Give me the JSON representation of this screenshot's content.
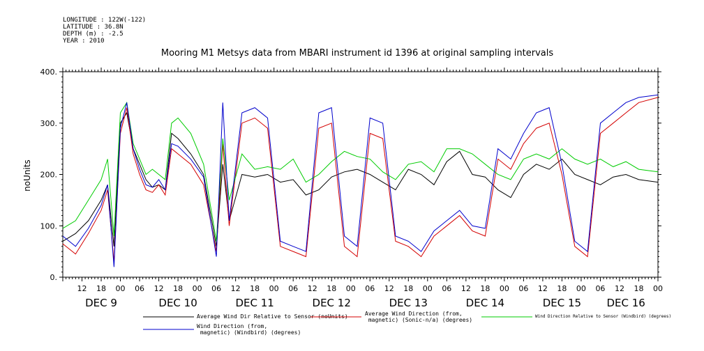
{
  "meta": {
    "longitude": "LONGITUDE : 122W(-122)",
    "latitude": "LATITUDE : 36.8N",
    "depth": "DEPTH (m) : -2.5",
    "year": "YEAR : 2010"
  },
  "chart_data": {
    "type": "line",
    "title": "Mooring M1 Metsys data from MBARI instrument id 1396 at original sampling intervals",
    "ylabel": "noUnits",
    "xlabel": "",
    "ylim": [
      0,
      400
    ],
    "xlim_hours": [
      0,
      186
    ],
    "y_ticks": [
      "0.",
      "100.",
      "200.",
      "300.",
      "400."
    ],
    "y_tick_values": [
      0,
      100,
      200,
      300,
      400
    ],
    "hour_tick_labels": [
      {
        "h": 6,
        "label": "12"
      },
      {
        "h": 12,
        "label": "18"
      },
      {
        "h": 18,
        "label": "00"
      },
      {
        "h": 24,
        "label": "06"
      },
      {
        "h": 30,
        "label": "12"
      },
      {
        "h": 36,
        "label": "18"
      },
      {
        "h": 42,
        "label": "00"
      },
      {
        "h": 48,
        "label": "06"
      },
      {
        "h": 54,
        "label": "12"
      },
      {
        "h": 60,
        "label": "18"
      },
      {
        "h": 66,
        "label": "00"
      },
      {
        "h": 72,
        "label": "06"
      },
      {
        "h": 78,
        "label": "12"
      },
      {
        "h": 84,
        "label": "18"
      },
      {
        "h": 90,
        "label": "00"
      },
      {
        "h": 96,
        "label": "06"
      },
      {
        "h": 102,
        "label": "12"
      },
      {
        "h": 108,
        "label": "18"
      },
      {
        "h": 114,
        "label": "00"
      },
      {
        "h": 120,
        "label": "06"
      },
      {
        "h": 126,
        "label": "12"
      },
      {
        "h": 132,
        "label": "18"
      },
      {
        "h": 138,
        "label": "00"
      },
      {
        "h": 144,
        "label": "06"
      },
      {
        "h": 150,
        "label": "12"
      },
      {
        "h": 156,
        "label": "18"
      },
      {
        "h": 162,
        "label": "00"
      },
      {
        "h": 168,
        "label": "06"
      },
      {
        "h": 174,
        "label": "12"
      },
      {
        "h": 180,
        "label": "18"
      },
      {
        "h": 186,
        "label": "00"
      }
    ],
    "day_labels": [
      {
        "h": 12,
        "label": "DEC  9"
      },
      {
        "h": 36,
        "label": "DEC 10"
      },
      {
        "h": 60,
        "label": "DEC 11"
      },
      {
        "h": 84,
        "label": "DEC 12"
      },
      {
        "h": 108,
        "label": "DEC 13"
      },
      {
        "h": 132,
        "label": "DEC 14"
      },
      {
        "h": 156,
        "label": "DEC 15"
      },
      {
        "h": 176,
        "label": "DEC 16"
      }
    ],
    "series": [
      {
        "name": "Average Wind Dir Relative to Sensor (noUnits)",
        "color": "#000000",
        "x": [
          0,
          4,
          8,
          12,
          14,
          16,
          18,
          20,
          22,
          24,
          26,
          28,
          30,
          32,
          34,
          36,
          40,
          44,
          48,
          50,
          52,
          56,
          60,
          64,
          68,
          72,
          76,
          80,
          84,
          88,
          92,
          96,
          100,
          104,
          108,
          112,
          116,
          120,
          124,
          128,
          132,
          136,
          140,
          144,
          148,
          152,
          156,
          160,
          164,
          168,
          172,
          176,
          180,
          186
        ],
        "y": [
          70,
          85,
          110,
          150,
          180,
          60,
          300,
          320,
          250,
          220,
          190,
          175,
          180,
          170,
          280,
          270,
          240,
          200,
          60,
          220,
          110,
          200,
          195,
          200,
          185,
          190,
          160,
          170,
          195,
          205,
          210,
          200,
          185,
          170,
          210,
          200,
          180,
          225,
          245,
          200,
          195,
          170,
          155,
          200,
          220,
          210,
          230,
          200,
          190,
          180,
          195,
          200,
          190,
          185
        ]
      },
      {
        "name": "Average Wind Direction (from, magnetic) (Sonic-n/a) (degrees)",
        "color": "#d40000",
        "x": [
          0,
          4,
          8,
          12,
          14,
          16,
          18,
          20,
          22,
          24,
          26,
          28,
          30,
          32,
          34,
          36,
          40,
          44,
          48,
          50,
          52,
          56,
          60,
          64,
          68,
          72,
          76,
          80,
          84,
          88,
          92,
          96,
          100,
          104,
          108,
          112,
          116,
          120,
          124,
          128,
          132,
          136,
          140,
          144,
          148,
          152,
          156,
          160,
          164,
          168,
          172,
          176,
          180,
          186
        ],
        "y": [
          65,
          45,
          85,
          130,
          170,
          30,
          280,
          330,
          240,
          200,
          170,
          165,
          180,
          160,
          250,
          240,
          220,
          180,
          50,
          260,
          100,
          300,
          310,
          290,
          60,
          50,
          40,
          290,
          300,
          60,
          40,
          280,
          270,
          70,
          60,
          40,
          80,
          100,
          120,
          90,
          80,
          230,
          210,
          260,
          290,
          300,
          200,
          60,
          40,
          280,
          300,
          320,
          340,
          350
        ]
      },
      {
        "name": "Wind Direction Relative to Sensor (Windbird) (degrees)",
        "color": "#00cc00",
        "x": [
          0,
          4,
          8,
          12,
          14,
          16,
          18,
          20,
          22,
          24,
          26,
          28,
          30,
          32,
          34,
          36,
          40,
          44,
          48,
          50,
          52,
          56,
          60,
          64,
          68,
          72,
          76,
          80,
          84,
          88,
          92,
          96,
          100,
          104,
          108,
          112,
          116,
          120,
          124,
          128,
          132,
          136,
          140,
          144,
          148,
          152,
          156,
          160,
          164,
          168,
          172,
          176,
          180,
          186
        ],
        "y": [
          95,
          110,
          150,
          190,
          230,
          80,
          320,
          340,
          260,
          230,
          200,
          210,
          200,
          190,
          300,
          310,
          280,
          220,
          70,
          270,
          150,
          240,
          210,
          215,
          210,
          230,
          185,
          200,
          225,
          245,
          235,
          230,
          205,
          190,
          220,
          225,
          205,
          250,
          250,
          240,
          220,
          200,
          190,
          230,
          240,
          230,
          250,
          230,
          220,
          230,
          215,
          225,
          210,
          205
        ]
      },
      {
        "name": "Wind Direction (from, magnetic) (Windbird) (degrees)",
        "color": "#0000cc",
        "x": [
          0,
          4,
          8,
          12,
          14,
          16,
          18,
          20,
          22,
          24,
          26,
          28,
          30,
          32,
          34,
          36,
          40,
          44,
          48,
          50,
          52,
          56,
          60,
          64,
          68,
          72,
          76,
          80,
          84,
          88,
          92,
          96,
          100,
          104,
          108,
          112,
          116,
          120,
          124,
          128,
          132,
          136,
          140,
          144,
          148,
          152,
          156,
          160,
          164,
          168,
          172,
          176,
          180,
          186
        ],
        "y": [
          80,
          60,
          95,
          140,
          180,
          20,
          290,
          340,
          250,
          210,
          180,
          175,
          190,
          170,
          260,
          255,
          230,
          195,
          40,
          340,
          110,
          320,
          330,
          310,
          70,
          60,
          50,
          320,
          330,
          80,
          60,
          310,
          300,
          80,
          70,
          50,
          90,
          110,
          130,
          100,
          95,
          250,
          230,
          280,
          320,
          330,
          220,
          70,
          50,
          300,
          320,
          340,
          350,
          355
        ]
      }
    ],
    "legend": [
      {
        "label": "Average Wind Dir Relative to Sensor (noUnits)",
        "color": "#000000"
      },
      {
        "label": "Average Wind Direction (from,\n magnetic) (Sonic-n/a) (degrees)",
        "color": "#d40000"
      },
      {
        "label": "Wind Direction Relative to Sensor (Windbird) (degrees)",
        "color": "#00cc00"
      },
      {
        "label": "Wind Direction (from,\n magnetic) (Windbird) (degrees)",
        "color": "#0000cc"
      }
    ]
  }
}
